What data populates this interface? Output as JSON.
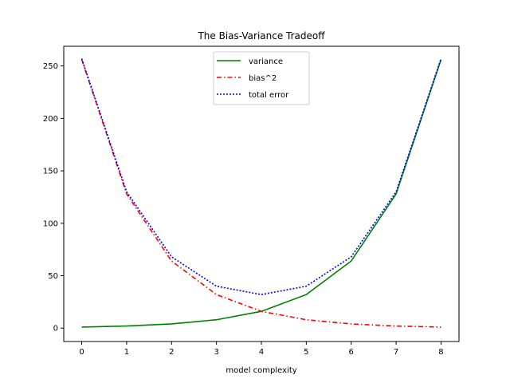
{
  "chart_data": {
    "type": "line",
    "title": "The Bias-Variance Tradeoff",
    "xlabel": "model complexity",
    "ylabel": "",
    "x": [
      0,
      1,
      2,
      3,
      4,
      5,
      6,
      7,
      8
    ],
    "xlim": [
      -0.4,
      8.4
    ],
    "ylim": [
      -12.75,
      268.75
    ],
    "xticks": [
      "0",
      "1",
      "2",
      "3",
      "4",
      "5",
      "6",
      "7",
      "8"
    ],
    "yticks": [
      "0",
      "50",
      "100",
      "150",
      "200",
      "250"
    ],
    "grid": false,
    "legend_position": "upper center",
    "series": [
      {
        "name": "variance",
        "values": [
          1,
          2,
          4,
          8,
          16,
          32,
          64,
          128,
          256
        ],
        "color": "#008000",
        "style": "solid"
      },
      {
        "name": "bias^2",
        "values": [
          256,
          128,
          64,
          32,
          16,
          8,
          4,
          2,
          1
        ],
        "color": "#ff0000",
        "style": "dashdot"
      },
      {
        "name": "total error",
        "values": [
          257,
          130,
          68,
          40,
          32,
          40,
          68,
          130,
          257
        ],
        "color": "#0000ff",
        "style": "dotted"
      }
    ]
  }
}
